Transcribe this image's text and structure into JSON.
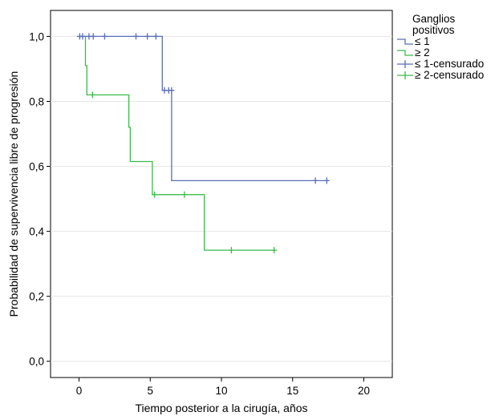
{
  "chart_data": {
    "type": "line",
    "subtype": "kaplan-meier step",
    "xlabel": "Tiempo posterior a la cirugía, años",
    "ylabel": "Probabilidad de supervivencia libre de progresión",
    "xlim": [
      -2,
      22
    ],
    "ylim": [
      -0.05,
      1.08
    ],
    "xticks": [
      0,
      5,
      10,
      15,
      20
    ],
    "xtick_labels": [
      "0",
      "5",
      "10",
      "15",
      "20"
    ],
    "yticks": [
      0.0,
      0.2,
      0.4,
      0.6,
      0.8,
      1.0
    ],
    "ytick_labels": [
      "0,0",
      "0,2",
      "0,4",
      "0,6",
      "0,8",
      "1,0"
    ],
    "grid": "horizontal lines at y ticks",
    "legend": {
      "placement": "top-right outside",
      "title": "Ganglios positivos",
      "entries": [
        "≤ 1",
        "≥ 2",
        "≤ 1-censurado",
        "≥ 2-censurado"
      ]
    },
    "series": [
      {
        "name": "≤ 1",
        "color": "#5A6FB8",
        "steps": [
          [
            0,
            1.0
          ],
          [
            5.85,
            1.0
          ],
          [
            5.85,
            0.834
          ],
          [
            6.5,
            0.834
          ],
          [
            6.5,
            0.556
          ],
          [
            17.5,
            0.556
          ]
        ],
        "censored": [
          [
            0.05,
            1.0
          ],
          [
            0.25,
            1.0
          ],
          [
            0.7,
            1.0
          ],
          [
            1.0,
            1.0
          ],
          [
            1.8,
            1.0
          ],
          [
            4.0,
            1.0
          ],
          [
            4.8,
            1.0
          ],
          [
            5.4,
            1.0
          ],
          [
            6.0,
            0.834
          ],
          [
            6.3,
            0.834
          ],
          [
            6.5,
            0.834
          ],
          [
            16.6,
            0.556
          ],
          [
            17.4,
            0.556
          ]
        ]
      },
      {
        "name": "≥ 2",
        "color": "#3DBB4A",
        "steps": [
          [
            0,
            1.0
          ],
          [
            0.45,
            1.0
          ],
          [
            0.45,
            0.91
          ],
          [
            0.55,
            0.91
          ],
          [
            0.55,
            0.82
          ],
          [
            3.5,
            0.82
          ],
          [
            3.5,
            0.72
          ],
          [
            3.6,
            0.72
          ],
          [
            3.6,
            0.615
          ],
          [
            5.15,
            0.615
          ],
          [
            5.15,
            0.513
          ],
          [
            8.8,
            0.513
          ],
          [
            8.8,
            0.342
          ],
          [
            13.8,
            0.342
          ]
        ],
        "censored": [
          [
            0.95,
            0.82
          ],
          [
            5.3,
            0.513
          ],
          [
            7.4,
            0.513
          ],
          [
            10.7,
            0.342
          ],
          [
            13.7,
            0.342
          ]
        ]
      }
    ]
  }
}
